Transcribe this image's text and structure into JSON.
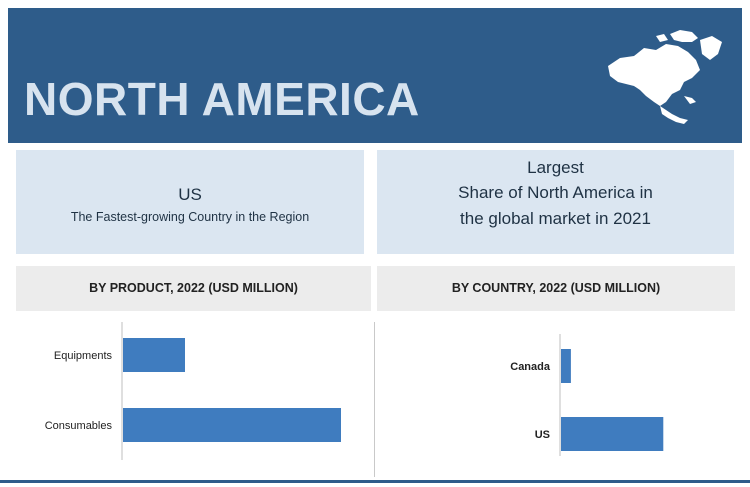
{
  "header": {
    "title": "NORTH AMERICA",
    "icon": "north-america-map-icon",
    "bg_color": "#2e5c8a"
  },
  "highlights": {
    "left": {
      "title": "US",
      "subtitle": "The Fastest-growing Country in the Region"
    },
    "right": {
      "lines": [
        "Largest",
        "Share of North America in",
        "the global market in 2021"
      ]
    }
  },
  "chart_data": [
    {
      "type": "bar",
      "orientation": "horizontal",
      "title": "BY PRODUCT, 2022 (USD MILLION)",
      "categories": [
        "Equipments",
        "Consumables"
      ],
      "values": [
        31,
        109
      ],
      "xlim": [
        0,
        120
      ],
      "color": "#3f7cbf",
      "grid": false
    },
    {
      "type": "bar",
      "orientation": "horizontal",
      "title": "BY COUNTRY, 2022 (USD MILLION)",
      "categories": [
        "Canada",
        "US"
      ],
      "values": [
        6,
        62
      ],
      "xlim": [
        0,
        120
      ],
      "color": "#3f7cbf",
      "grid": false
    }
  ]
}
